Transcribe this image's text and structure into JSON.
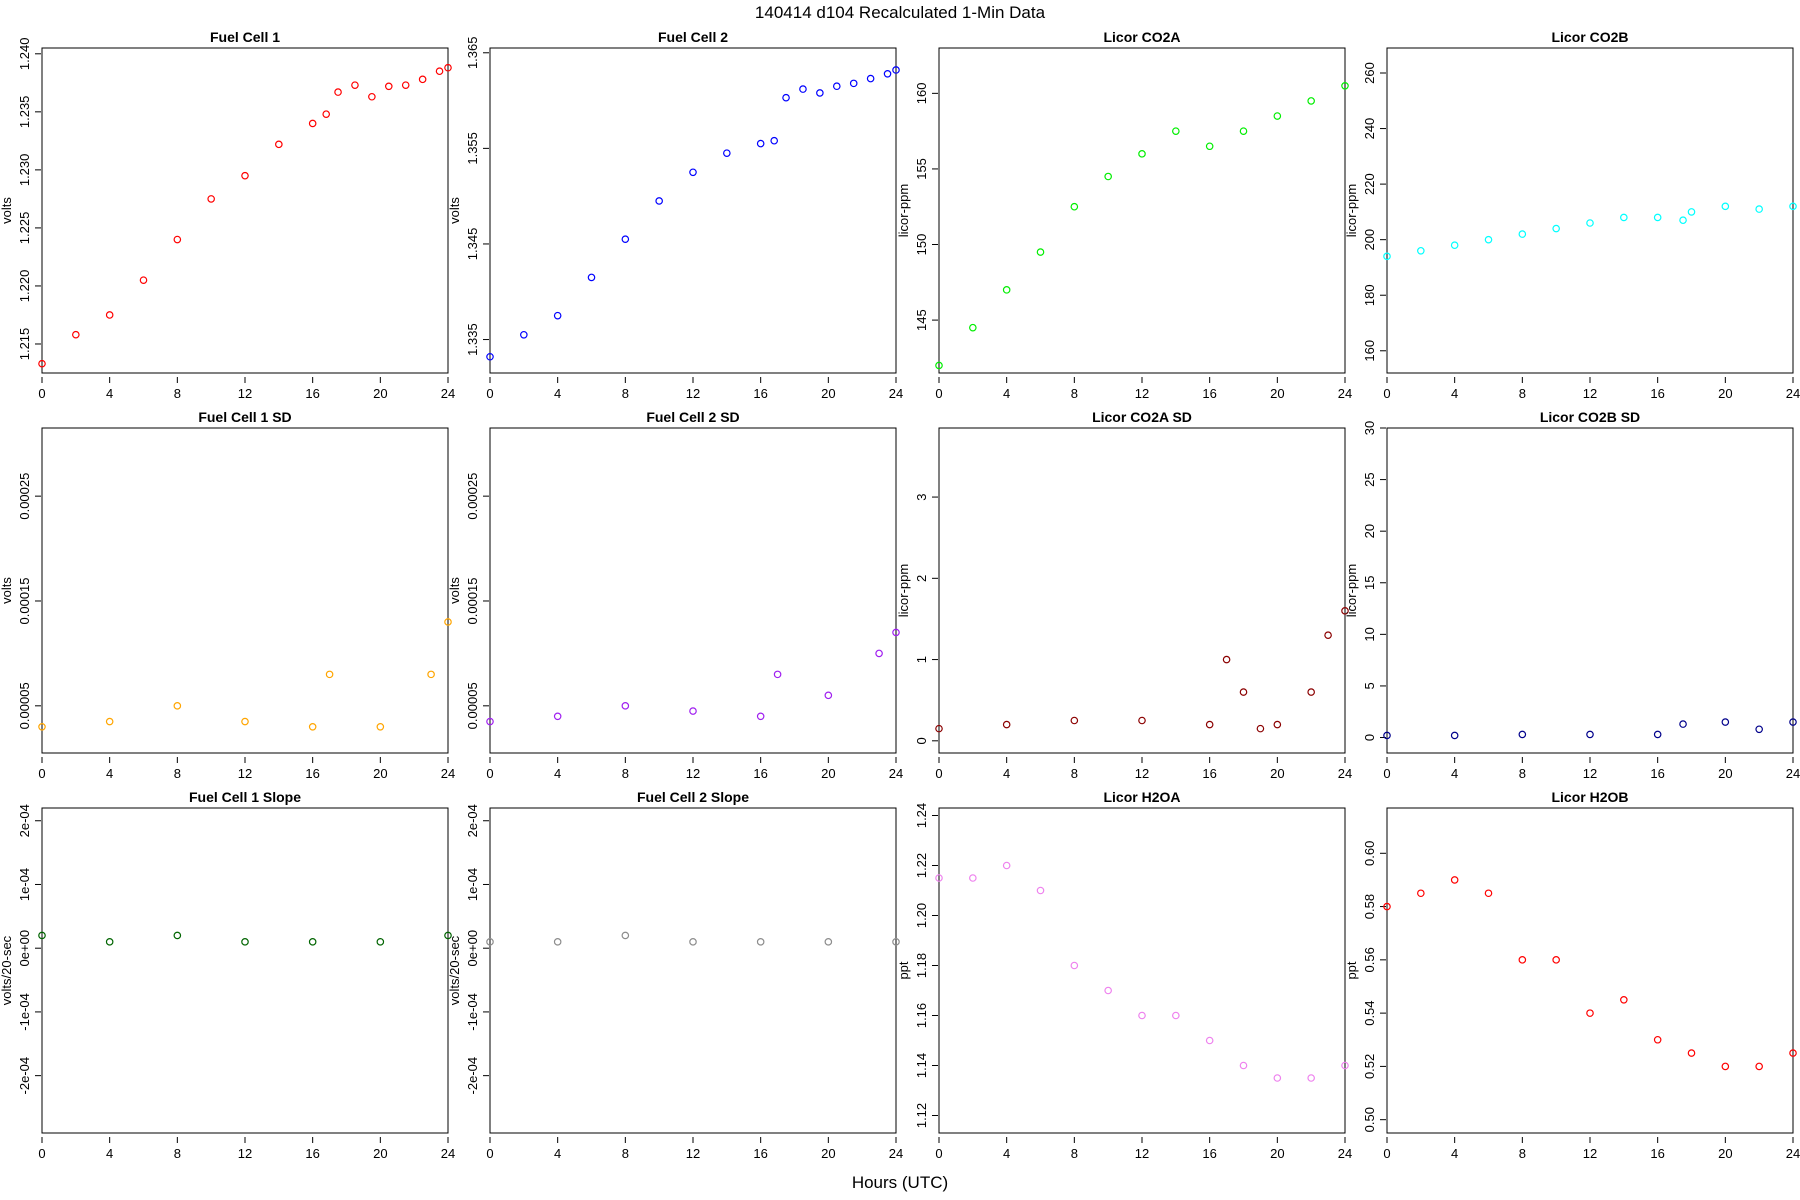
{
  "figure": {
    "title": "140414    d104    Recalculated 1-Min Data",
    "xlabel": "Hours (UTC)"
  },
  "chart_data": [
    {
      "type": "scatter",
      "title": "Fuel Cell 1",
      "ylabel": "volts",
      "color": "#ff0000",
      "xlim": [
        0,
        24
      ],
      "ylim": [
        1.2125,
        1.2405
      ],
      "x_ticks": [
        0,
        4,
        8,
        12,
        16,
        20,
        24
      ],
      "y_ticks": [
        "1.215",
        "1.220",
        "1.225",
        "1.230",
        "1.235",
        "1.240"
      ],
      "x": [
        0,
        2,
        4,
        6,
        8,
        10,
        12,
        14,
        16,
        16.8,
        17.5,
        18.5,
        19.5,
        20.5,
        21.5,
        22.5,
        23.5,
        24
      ],
      "y": [
        1.2133,
        1.2158,
        1.2175,
        1.2205,
        1.224,
        1.2275,
        1.2295,
        1.2322,
        1.234,
        1.2348,
        1.2367,
        1.2373,
        1.2363,
        1.2372,
        1.2373,
        1.2378,
        1.2385,
        1.2388
      ]
    },
    {
      "type": "scatter",
      "title": "Fuel Cell 2",
      "ylabel": "volts",
      "color": "#0000ff",
      "xlim": [
        0,
        24
      ],
      "ylim": [
        1.3315,
        1.3655
      ],
      "x_ticks": [
        0,
        4,
        8,
        12,
        16,
        20,
        24
      ],
      "y_ticks": [
        "1.335",
        "1.345",
        "1.355",
        "1.365"
      ],
      "x": [
        0,
        2,
        4,
        6,
        8,
        10,
        12,
        14,
        16,
        16.8,
        17.5,
        18.5,
        19.5,
        20.5,
        21.5,
        22.5,
        23.5,
        24
      ],
      "y": [
        1.3332,
        1.3355,
        1.3375,
        1.3415,
        1.3455,
        1.3495,
        1.3525,
        1.3545,
        1.3555,
        1.3558,
        1.3603,
        1.3612,
        1.3608,
        1.3615,
        1.3618,
        1.3623,
        1.3628,
        1.3632
      ]
    },
    {
      "type": "scatter",
      "title": "Licor CO2A",
      "ylabel": "licor-ppm",
      "color": "#00ee00",
      "xlim": [
        0,
        24
      ],
      "ylim": [
        141.5,
        163
      ],
      "x_ticks": [
        0,
        4,
        8,
        12,
        16,
        20,
        24
      ],
      "y_ticks": [
        "145",
        "150",
        "155",
        "160"
      ],
      "x": [
        0,
        2,
        4,
        6,
        8,
        10,
        12,
        14,
        16,
        18,
        20,
        22,
        24
      ],
      "y": [
        142,
        144.5,
        147,
        149.5,
        152.5,
        154.5,
        156,
        157.5,
        156.5,
        157.5,
        158.5,
        159.5,
        160.5
      ]
    },
    {
      "type": "scatter",
      "title": "Licor CO2B",
      "ylabel": "licor-ppm",
      "color": "#00ffff",
      "xlim": [
        0,
        24
      ],
      "ylim": [
        152,
        269
      ],
      "x_ticks": [
        0,
        4,
        8,
        12,
        16,
        20,
        24
      ],
      "y_ticks": [
        "160",
        "180",
        "200",
        "220",
        "240",
        "260"
      ],
      "x": [
        0,
        2,
        4,
        6,
        8,
        10,
        12,
        14,
        16,
        17.5,
        18,
        20,
        22,
        24
      ],
      "y": [
        194,
        196,
        198,
        200,
        202,
        204,
        206,
        208,
        208,
        207,
        210,
        212,
        211,
        212
      ]
    },
    {
      "type": "scatter",
      "title": "Fuel Cell 1 SD",
      "ylabel": "volts",
      "color": "#ffa500",
      "xlim": [
        0,
        24
      ],
      "ylim": [
        5e-06,
        0.000315
      ],
      "x_ticks": [
        0,
        4,
        8,
        12,
        16,
        20,
        24
      ],
      "y_ticks": [
        "0.00005",
        "0.00015",
        "0.00025"
      ],
      "x": [
        0,
        4,
        8,
        12,
        16,
        17,
        20,
        23,
        24
      ],
      "y": [
        3e-05,
        3.5e-05,
        5e-05,
        3.5e-05,
        3e-05,
        8e-05,
        3e-05,
        8e-05,
        0.00013
      ]
    },
    {
      "type": "scatter",
      "title": "Fuel Cell 2 SD",
      "ylabel": "volts",
      "color": "#a020f0",
      "xlim": [
        0,
        24
      ],
      "ylim": [
        5e-06,
        0.000315
      ],
      "x_ticks": [
        0,
        4,
        8,
        12,
        16,
        20,
        24
      ],
      "y_ticks": [
        "0.00005",
        "0.00015",
        "0.00025"
      ],
      "x": [
        0,
        4,
        8,
        12,
        16,
        17,
        20,
        23,
        24
      ],
      "y": [
        3.5e-05,
        4e-05,
        5e-05,
        4.5e-05,
        4e-05,
        8e-05,
        6e-05,
        0.0001,
        0.00012
      ]
    },
    {
      "type": "scatter",
      "title": "Licor CO2A SD",
      "ylabel": "licor-ppm",
      "color": "#8b0000",
      "xlim": [
        0,
        24
      ],
      "ylim": [
        -0.15,
        3.85
      ],
      "x_ticks": [
        0,
        4,
        8,
        12,
        16,
        20,
        24
      ],
      "y_ticks": [
        "0",
        "1",
        "2",
        "3"
      ],
      "x": [
        0,
        4,
        8,
        12,
        16,
        17,
        18,
        19,
        20,
        22,
        23,
        24
      ],
      "y": [
        0.15,
        0.2,
        0.25,
        0.25,
        0.2,
        1.0,
        0.6,
        0.15,
        0.2,
        0.6,
        1.3,
        1.6
      ]
    },
    {
      "type": "scatter",
      "title": "Licor CO2B SD",
      "ylabel": "licor-ppm",
      "color": "#00008b",
      "xlim": [
        0,
        24
      ],
      "ylim": [
        -1.5,
        30
      ],
      "x_ticks": [
        0,
        4,
        8,
        12,
        16,
        20,
        24
      ],
      "y_ticks": [
        "0",
        "5",
        "10",
        "15",
        "20",
        "25",
        "30"
      ],
      "x": [
        0,
        4,
        8,
        12,
        16,
        17.5,
        20,
        22,
        24
      ],
      "y": [
        0.2,
        0.2,
        0.3,
        0.3,
        0.3,
        1.3,
        1.5,
        0.8,
        1.5
      ]
    },
    {
      "type": "scatter",
      "title": "Fuel Cell 1 Slope",
      "ylabel": "volts/20-sec",
      "color": "#006400",
      "xlim": [
        0,
        24
      ],
      "ylim": [
        -0.00029,
        0.00022
      ],
      "x_ticks": [
        0,
        4,
        8,
        12,
        16,
        20,
        24
      ],
      "y_ticks": [
        "-2e-04",
        "-1e-04",
        "0e+00",
        "1e-04",
        "2e-04"
      ],
      "x": [
        0,
        4,
        8,
        12,
        16,
        20,
        24
      ],
      "y": [
        2e-05,
        1e-05,
        2e-05,
        1e-05,
        1e-05,
        1e-05,
        2e-05
      ]
    },
    {
      "type": "scatter",
      "title": "Fuel Cell 2 Slope",
      "ylabel": "volts/20-sec",
      "color": "#8c8c8c",
      "xlim": [
        0,
        24
      ],
      "ylim": [
        -0.00029,
        0.00022
      ],
      "x_ticks": [
        0,
        4,
        8,
        12,
        16,
        20,
        24
      ],
      "y_ticks": [
        "-2e-04",
        "-1e-04",
        "0e+00",
        "1e-04",
        "2e-04"
      ],
      "x": [
        0,
        4,
        8,
        12,
        16,
        20,
        24
      ],
      "y": [
        1e-05,
        1e-05,
        2e-05,
        1e-05,
        1e-05,
        1e-05,
        1e-05
      ]
    },
    {
      "type": "scatter",
      "title": "Licor H2OA",
      "ylabel": "ppt",
      "color": "#ee82ee",
      "xlim": [
        0,
        24
      ],
      "ylim": [
        1.113,
        1.243
      ],
      "x_ticks": [
        0,
        4,
        8,
        12,
        16,
        20,
        24
      ],
      "y_ticks": [
        "1.12",
        "1.14",
        "1.16",
        "1.18",
        "1.20",
        "1.22",
        "1.24"
      ],
      "x": [
        0,
        2,
        4,
        6,
        8,
        10,
        12,
        14,
        16,
        18,
        20,
        22,
        24
      ],
      "y": [
        1.215,
        1.215,
        1.22,
        1.21,
        1.18,
        1.17,
        1.16,
        1.16,
        1.15,
        1.14,
        1.135,
        1.135,
        1.14
      ]
    },
    {
      "type": "scatter",
      "title": "Licor H2OB",
      "ylabel": "ppt",
      "color": "#ff0000",
      "xlim": [
        0,
        24
      ],
      "ylim": [
        0.495,
        0.617
      ],
      "x_ticks": [
        0,
        4,
        8,
        12,
        16,
        20,
        24
      ],
      "y_ticks": [
        "0.50",
        "0.52",
        "0.54",
        "0.56",
        "0.58",
        "0.60"
      ],
      "x": [
        0,
        2,
        4,
        6,
        8,
        10,
        12,
        14,
        16,
        18,
        20,
        22,
        24
      ],
      "y": [
        0.58,
        0.585,
        0.59,
        0.585,
        0.56,
        0.56,
        0.54,
        0.545,
        0.53,
        0.525,
        0.52,
        0.52,
        0.525
      ]
    }
  ]
}
